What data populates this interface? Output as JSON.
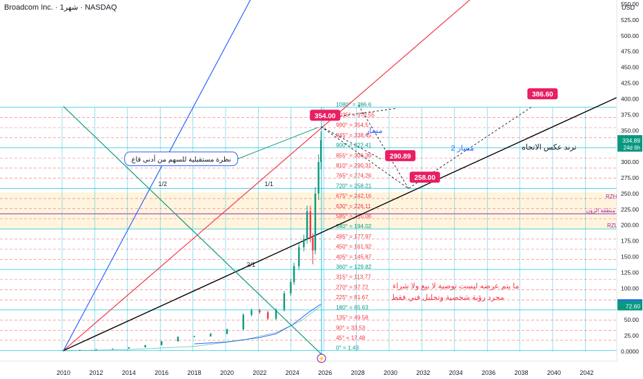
{
  "header": {
    "title": "Broadcom Inc. · 1ﺷﻬﺮ · NASDAQ",
    "currency": "USD"
  },
  "chart_data": {
    "type": "candlestick",
    "x_ticks": [
      "2010",
      "2012",
      "2014",
      "2016",
      "2018",
      "2020",
      "2022",
      "2024",
      "2026",
      "2028",
      "2030",
      "2032",
      "2034",
      "2036",
      "2038",
      "2040",
      "2042"
    ],
    "y_ticks": [
      "0.0000",
      "25.00",
      "50.00",
      "75.00",
      "100.00",
      "125.00",
      "150.00",
      "175.00",
      "200.00",
      "225.00",
      "250.00",
      "275.00",
      "300.00",
      "325.00",
      "350.00",
      "375.00",
      "400.00",
      "425.00",
      "450.00",
      "475.00",
      "500.00",
      "525.00",
      "550.00"
    ],
    "ylim": [
      0,
      560
    ],
    "xlim": [
      2010,
      2044
    ],
    "candles": [
      [
        2010,
        1.4
      ],
      [
        2011,
        2.5
      ],
      [
        2012,
        3.5
      ],
      [
        2013,
        4.5
      ],
      [
        2014,
        6.5
      ],
      [
        2015,
        10
      ],
      [
        2016,
        16
      ],
      [
        2017,
        23
      ],
      [
        2018,
        24
      ],
      [
        2019,
        28
      ],
      [
        2020,
        35
      ],
      [
        2021,
        58
      ],
      [
        2021.5,
        65
      ],
      [
        2022,
        62
      ],
      [
        2022.5,
        52
      ],
      [
        2023,
        66
      ],
      [
        2023.5,
        92
      ],
      [
        2023.9,
        110
      ],
      [
        2024.1,
        135
      ],
      [
        2024.4,
        165
      ],
      [
        2024.7,
        178
      ],
      [
        2024.9,
        222
      ],
      [
        2025.1,
        180
      ],
      [
        2025.25,
        160
      ],
      [
        2025.4,
        250
      ],
      [
        2025.6,
        300
      ],
      [
        2025.75,
        334.89
      ]
    ],
    "candle_lows": [
      [
        2025.25,
        138
      ]
    ],
    "price_labels": [
      {
        "price": 334.89,
        "text": "334.89",
        "sub": "24d 6h",
        "color": "#089981"
      },
      {
        "price": 75.04,
        "text": "75.04",
        "color": "#2962ff"
      },
      {
        "price": 72.6,
        "text": "72.60",
        "color": "#089981"
      }
    ],
    "gann_levels": [
      {
        "label": "0° = 1.43",
        "price": 1.43
      },
      {
        "label": "45° = 17.48",
        "price": 17.48
      },
      {
        "label": "90° = 33.53",
        "price": 33.53
      },
      {
        "label": "135° = 49.58",
        "price": 49.58
      },
      {
        "label": "180° = 65.63",
        "price": 65.63
      },
      {
        "label": "225° = 81.67",
        "price": 81.67
      },
      {
        "label": "270° = 97.72",
        "price": 97.72
      },
      {
        "label": "315° = 113.77",
        "price": 113.77
      },
      {
        "label": "360° = 129.82",
        "price": 129.82
      },
      {
        "label": "405° = 145.87",
        "price": 145.87
      },
      {
        "label": "450° = 161.92",
        "price": 161.92
      },
      {
        "label": "495° = 177.97",
        "price": 177.97
      },
      {
        "label": "540° = 194.02",
        "price": 194.02
      },
      {
        "label": "585° = 210.06",
        "price": 210.06
      },
      {
        "label": "630° = 226.11",
        "price": 226.11
      },
      {
        "label": "675° = 242.16",
        "price": 242.16
      },
      {
        "label": "720° = 258.21",
        "price": 258.21
      },
      {
        "label": "765° = 274.26",
        "price": 274.26
      },
      {
        "label": "810° = 290.31",
        "price": 290.31
      },
      {
        "label": "855° = 306.36",
        "price": 306.36
      },
      {
        "label": "900° = 322.41",
        "price": 322.41
      },
      {
        "label": "945° = 338.45",
        "price": 338.45
      },
      {
        "label": "990° = 354.5",
        "price": 354.5
      },
      {
        "label": "1035° = 370.55",
        "price": 370.55
      },
      {
        "label": "1080° = 386.6",
        "price": 386.6
      }
    ],
    "zone": {
      "top": 252,
      "bottom": 193,
      "label_top": "RZH",
      "label_bottom": "RZL",
      "label_mid": "منطقة الزون"
    },
    "fan_labels": [
      {
        "text": "1/2",
        "x": 2015.8,
        "y": 262
      },
      {
        "text": "1/1",
        "x": 2022.3,
        "y": 262
      },
      {
        "text": "2/1",
        "x": 2021.2,
        "y": 134
      }
    ],
    "fan_lines": [
      {
        "name": "blue",
        "color": "#2962ff",
        "from": [
          2010,
          1.4
        ],
        "to": [
          2021.5,
          560
        ]
      },
      {
        "name": "red",
        "color": "#f23645",
        "from": [
          2010,
          1.4
        ],
        "to": [
          2035,
          560
        ]
      },
      {
        "name": "black",
        "color": "#000000",
        "from": [
          2010,
          1.4
        ],
        "to": [
          2044,
          404
        ]
      },
      {
        "name": "green",
        "color": "#089981",
        "from": [
          2010,
          388
        ],
        "to": [
          2026,
          -10
        ]
      }
    ],
    "targets": [
      {
        "text": "354.00",
        "x": 2026,
        "y": 374
      },
      {
        "text": "290.89",
        "x": 2030.6,
        "y": 310
      },
      {
        "text": "258.00",
        "x": 2032.1,
        "y": 276
      },
      {
        "text": "386.60",
        "x": 2039.3,
        "y": 408
      }
    ],
    "dashed_paths": [
      [
        [
          2025.75,
          356
        ],
        [
          2031.1,
          258
        ],
        [
          2038.6,
          386.6
        ]
      ],
      [
        [
          2025.75,
          356
        ],
        [
          2029.4,
          305
        ]
      ],
      [
        [
          2031.1,
          258
        ],
        [
          2028,
          392
        ]
      ],
      [
        [
          2025.9,
          369
        ],
        [
          2030.4,
          385
        ]
      ]
    ],
    "annotations": [
      {
        "text": "نظرة مستقبلية للسهم من أدنى قاع",
        "x": 2017.2,
        "y": 305,
        "box": true
      },
      {
        "text": "ترند عكس الاتجاه",
        "x": 2039.7,
        "y": 320,
        "color": "#131722"
      },
      {
        "text": "مسار 2",
        "x": 2034.4,
        "y": 318,
        "color": "#2962ff"
      },
      {
        "text": "مسار",
        "x": 2029,
        "y": 346,
        "color": "#2962ff"
      },
      {
        "text": "ما يتم عرضه ليست توصية  لا بيع ولا شراء",
        "x": 2034,
        "y": 100,
        "color": "#f23645"
      },
      {
        "text": "مجرد رؤية شخصية وتحليل فني  فقط",
        "x": 2033.5,
        "y": 82,
        "color": "#f23645"
      }
    ]
  }
}
